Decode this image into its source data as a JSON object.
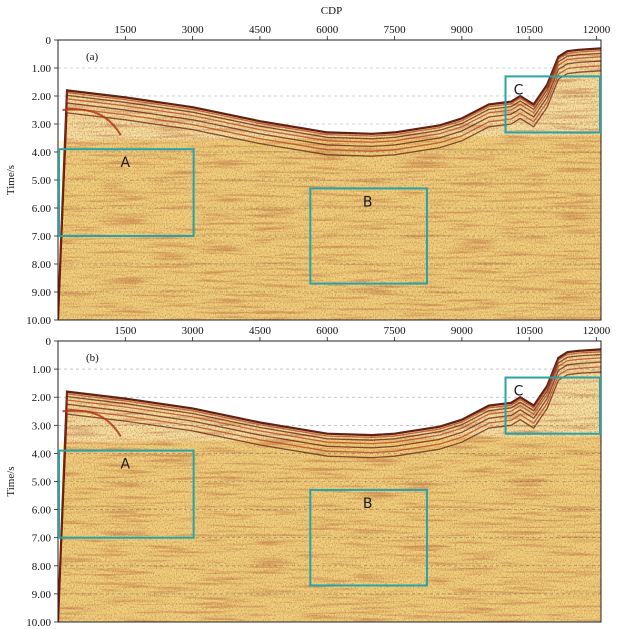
{
  "chart_data": {
    "type": "heatmap",
    "xlabel": "CDP",
    "ylabel": "Time/s",
    "x_ticks": [
      1500,
      3000,
      4500,
      6000,
      7500,
      9000,
      10500,
      12000
    ],
    "x_tick_labels": [
      "1500",
      "3000",
      "4500",
      "6000",
      "7500",
      "9000",
      "10500",
      "12000"
    ],
    "y_ticks": [
      0,
      1,
      2,
      3,
      4,
      5,
      6,
      7,
      8,
      9,
      10
    ],
    "y_tick_labels": [
      "0",
      "1.00",
      "2.00",
      "3.00",
      "4.00",
      "5.00",
      "6.00",
      "7.00",
      "8.00",
      "9.00",
      "10.00"
    ],
    "xlim": [
      0,
      12100
    ],
    "ylim": [
      0,
      10
    ],
    "grid": "horizontal dashed",
    "colors": {
      "background": "#efd27e",
      "dark_reflector": "#5a1508",
      "red_reflector": "#b0361a",
      "light": "#faf0c2",
      "box": "#2aa3a7"
    },
    "seafloor": {
      "cdp": [
        0,
        200,
        1500,
        3000,
        4500,
        6000,
        7000,
        7500,
        8500,
        9000,
        9600,
        10100,
        10300,
        10600,
        10900,
        11150,
        11350,
        11600,
        12100
      ],
      "time": [
        10,
        1.8,
        2.05,
        2.4,
        2.9,
        3.3,
        3.35,
        3.3,
        3.05,
        2.8,
        2.3,
        2.2,
        2.0,
        2.3,
        1.6,
        0.6,
        0.4,
        0.35,
        0.3
      ]
    },
    "panels": [
      {
        "label": "(a)",
        "boxes": [
          {
            "label": "A",
            "cdp": [
              0,
              3000
            ],
            "time": [
              3.9,
              7.0
            ]
          },
          {
            "label": "B",
            "cdp": [
              5600,
              8200
            ],
            "time": [
              5.3,
              8.7
            ]
          },
          {
            "label": "C",
            "cdp": [
              9950,
              12100
            ],
            "time": [
              1.3,
              3.3
            ]
          }
        ]
      },
      {
        "label": "(b)",
        "boxes": [
          {
            "label": "A",
            "cdp": [
              0,
              3000
            ],
            "time": [
              3.9,
              7.0
            ]
          },
          {
            "label": "B",
            "cdp": [
              5600,
              8200
            ],
            "time": [
              5.3,
              8.7
            ]
          },
          {
            "label": "C",
            "cdp": [
              9950,
              12100
            ],
            "time": [
              1.3,
              3.3
            ]
          }
        ]
      }
    ]
  }
}
